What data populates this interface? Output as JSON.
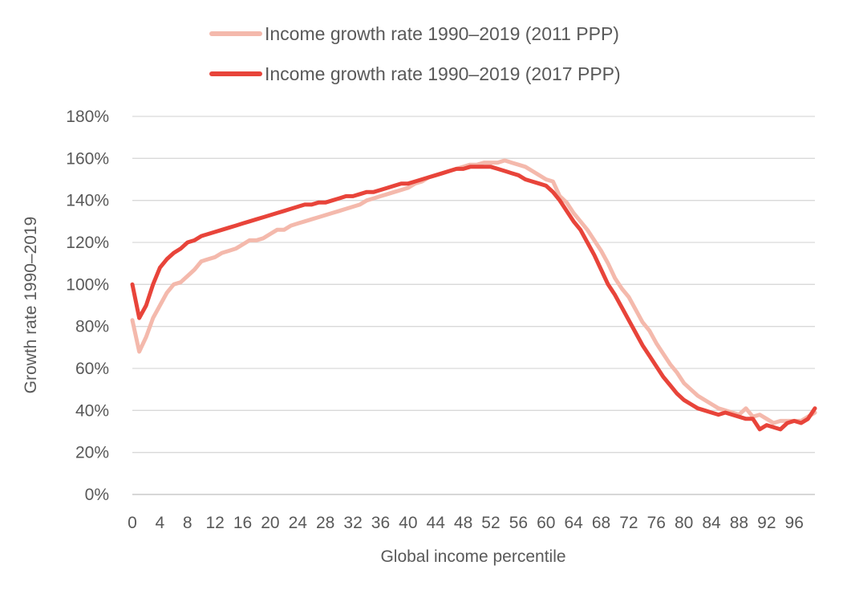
{
  "chart_data": {
    "type": "line",
    "title": "",
    "xlabel": "Global income percentile",
    "ylabel": "Growth rate 1990–2019",
    "xlim": [
      0,
      99
    ],
    "ylim": [
      0,
      180
    ],
    "y_unit": "%",
    "grid": "horizontal",
    "legend_placement": "top",
    "x_tick_labels": [
      "0",
      "4",
      "8",
      "12",
      "16",
      "20",
      "24",
      "28",
      "32",
      "36",
      "40",
      "44",
      "48",
      "52",
      "56",
      "60",
      "64",
      "68",
      "72",
      "76",
      "80",
      "84",
      "88",
      "92",
      "96"
    ],
    "y_tick_labels": [
      "0%",
      "20%",
      "40%",
      "60%",
      "80%",
      "100%",
      "120%",
      "140%",
      "160%",
      "180%"
    ],
    "y_ticks": [
      0,
      20,
      40,
      60,
      80,
      100,
      120,
      140,
      160,
      180
    ],
    "x": [
      0,
      1,
      2,
      3,
      4,
      5,
      6,
      7,
      8,
      9,
      10,
      11,
      12,
      13,
      14,
      15,
      16,
      17,
      18,
      19,
      20,
      21,
      22,
      23,
      24,
      25,
      26,
      27,
      28,
      29,
      30,
      31,
      32,
      33,
      34,
      35,
      36,
      37,
      38,
      39,
      40,
      41,
      42,
      43,
      44,
      45,
      46,
      47,
      48,
      49,
      50,
      51,
      52,
      53,
      54,
      55,
      56,
      57,
      58,
      59,
      60,
      61,
      62,
      63,
      64,
      65,
      66,
      67,
      68,
      69,
      70,
      71,
      72,
      73,
      74,
      75,
      76,
      77,
      78,
      79,
      80,
      81,
      82,
      83,
      84,
      85,
      86,
      87,
      88,
      89,
      90,
      91,
      92,
      93,
      94,
      95,
      96,
      97,
      98,
      99
    ],
    "series": [
      {
        "name": "Income growth rate 1990–2019 (2011 PPP)",
        "color": "#F4B9AC",
        "values": [
          83,
          68,
          75,
          84,
          90,
          96,
          100,
          101,
          104,
          107,
          111,
          112,
          113,
          115,
          116,
          117,
          119,
          121,
          121,
          122,
          124,
          126,
          126,
          128,
          129,
          130,
          131,
          132,
          133,
          134,
          135,
          136,
          137,
          138,
          140,
          141,
          142,
          143,
          144,
          145,
          146,
          148,
          149,
          151,
          152,
          153,
          154,
          155,
          156,
          157,
          157,
          158,
          158,
          158,
          159,
          158,
          157,
          156,
          154,
          152,
          150,
          149,
          142,
          139,
          134,
          130,
          126,
          121,
          116,
          110,
          103,
          98,
          94,
          88,
          82,
          78,
          72,
          67,
          62,
          58,
          53,
          50,
          47,
          45,
          43,
          41,
          40,
          39,
          38,
          41,
          37,
          38,
          36,
          34,
          35,
          35,
          35,
          35,
          37,
          39
        ]
      },
      {
        "name": "Income growth rate 1990–2019 (2017 PPP)",
        "color": "#E8443A",
        "values": [
          100,
          84,
          90,
          100,
          108,
          112,
          115,
          117,
          120,
          121,
          123,
          124,
          125,
          126,
          127,
          128,
          129,
          130,
          131,
          132,
          133,
          134,
          135,
          136,
          137,
          138,
          138,
          139,
          139,
          140,
          141,
          142,
          142,
          143,
          144,
          144,
          145,
          146,
          147,
          148,
          148,
          149,
          150,
          151,
          152,
          153,
          154,
          155,
          155,
          156,
          156,
          156,
          156,
          155,
          154,
          153,
          152,
          150,
          149,
          148,
          147,
          144,
          140,
          135,
          130,
          126,
          120,
          114,
          107,
          100,
          95,
          89,
          83,
          77,
          71,
          66,
          61,
          56,
          52,
          48,
          45,
          43,
          41,
          40,
          39,
          38,
          39,
          38,
          37,
          36,
          36,
          31,
          33,
          32,
          31,
          34,
          35,
          34,
          36,
          41
        ]
      }
    ]
  }
}
